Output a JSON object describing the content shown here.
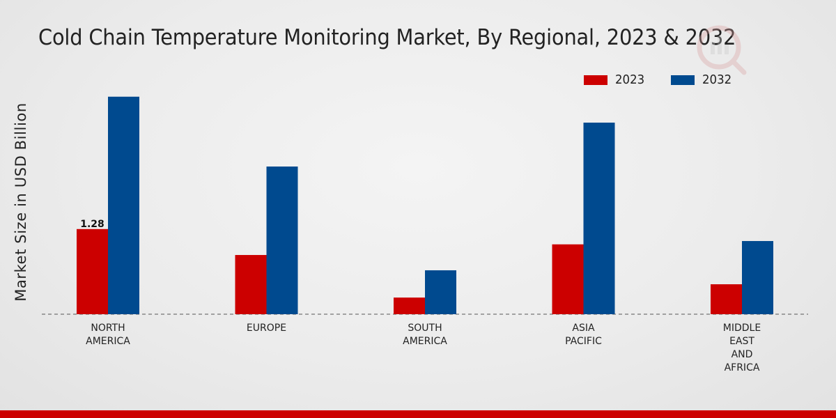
{
  "chart_data": {
    "type": "bar",
    "title": "Cold Chain Temperature Monitoring Market, By Regional, 2023 & 2032",
    "xlabel": "",
    "ylabel": "Market Size in USD Billion",
    "categories": [
      "NORTH\nAMERICA",
      "EUROPE",
      "SOUTH\nAMERICA",
      "ASIA\nPACIFIC",
      "MIDDLE\nEAST\nAND\nAFRICA"
    ],
    "series": [
      {
        "name": "2023",
        "color": "#cc0000",
        "values": [
          1.28,
          0.89,
          0.25,
          1.05,
          0.45
        ]
      },
      {
        "name": "2032",
        "color": "#004a8f",
        "values": [
          3.27,
          2.22,
          0.66,
          2.88,
          1.1
        ]
      }
    ],
    "data_labels": [
      {
        "series": 0,
        "index": 0,
        "text": "1.28"
      }
    ],
    "ylim": [
      0,
      4.2
    ],
    "grid": false,
    "baseline": "dashed",
    "legend": "top-right"
  }
}
